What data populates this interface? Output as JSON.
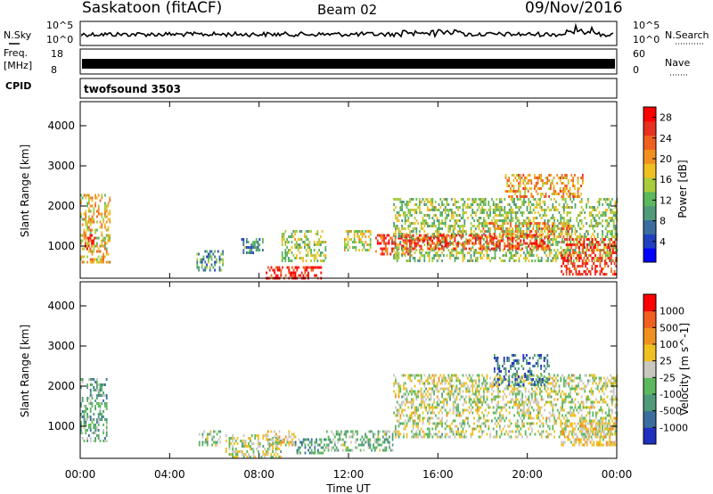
{
  "header": {
    "station": "Saskatoon (fitACF)",
    "beam": "Beam 02",
    "date": "09/Nov/2016"
  },
  "strips": {
    "nsky_label": "N.Sky",
    "nsearch_label": "N.Search",
    "nsky_top": "10^5",
    "nsky_bottom": "10^0",
    "nsearch_top": "10^5",
    "nsearch_bottom": "10^0",
    "freq_label": "Freq.",
    "freq_unit": "[MHz]",
    "freq_top": "18",
    "freq_bottom": "8",
    "nave_label": "Nave",
    "nave_top": "60",
    "nave_bottom": "0",
    "cpid_label": "CPID",
    "cpid_value": "twofsound 3503"
  },
  "colors": {
    "background": "#ffffff",
    "power_scale": [
      "#0000ff",
      "#2040c0",
      "#3a6e9c",
      "#4f9a7a",
      "#5cb85c",
      "#a8cc3c",
      "#f0c020",
      "#f09020",
      "#f06020",
      "#e83020",
      "#ff0000"
    ],
    "velocity_scale": [
      "#2030c0",
      "#3a6e9c",
      "#4f9a7a",
      "#5cb85c",
      "#c8c8c0",
      "#f0c020",
      "#f09020",
      "#f06020",
      "#ff0000"
    ]
  },
  "chart_data": [
    {
      "type": "heatmap",
      "title": "",
      "xlabel": "",
      "ylabel": "Slant Range [km]",
      "xlim": [
        "00:00",
        "00:00"
      ],
      "ylim": [
        200,
        4600
      ],
      "xticks": [
        "00:00",
        "04:00",
        "08:00",
        "12:00",
        "16:00",
        "20:00",
        "00:00"
      ],
      "yticks": [
        1000,
        2000,
        3000,
        4000
      ],
      "colorbar_label": "Power [dB]",
      "colorbar_ticks": [
        4,
        8,
        12,
        16,
        20,
        24,
        28
      ],
      "colorbar_range": [
        0,
        30
      ],
      "regions": [
        {
          "t0": 0.0,
          "t1": 1.3,
          "r0": 600,
          "r1": 2300,
          "v": 18
        },
        {
          "t0": 0.2,
          "t1": 0.7,
          "r0": 900,
          "r1": 1300,
          "v": 26
        },
        {
          "t0": 5.2,
          "t1": 6.4,
          "r0": 400,
          "r1": 900,
          "v": 10
        },
        {
          "t0": 7.2,
          "t1": 8.2,
          "r0": 800,
          "r1": 1200,
          "v": 9
        },
        {
          "t0": 9.0,
          "t1": 11.0,
          "r0": 600,
          "r1": 1400,
          "v": 14
        },
        {
          "t0": 8.3,
          "t1": 10.8,
          "r0": 200,
          "r1": 500,
          "v": 28
        },
        {
          "t0": 11.8,
          "t1": 13.0,
          "r0": 900,
          "r1": 1400,
          "v": 16
        },
        {
          "t0": 13.2,
          "t1": 14.8,
          "r0": 800,
          "r1": 1300,
          "v": 25
        },
        {
          "t0": 14.0,
          "t1": 24.0,
          "r0": 600,
          "r1": 2200,
          "v": 14
        },
        {
          "t0": 14.5,
          "t1": 21.0,
          "r0": 900,
          "r1": 1300,
          "v": 25
        },
        {
          "t0": 18.0,
          "t1": 22.0,
          "r0": 1200,
          "r1": 1600,
          "v": 21
        },
        {
          "t0": 19.0,
          "t1": 22.5,
          "r0": 2200,
          "r1": 2800,
          "v": 20
        },
        {
          "t0": 21.5,
          "t1": 24.0,
          "r0": 300,
          "r1": 1200,
          "v": 26
        }
      ]
    },
    {
      "type": "heatmap",
      "title": "",
      "xlabel": "Time UT",
      "ylabel": "Slant Range [km]",
      "xlim": [
        "00:00",
        "00:00"
      ],
      "ylim": [
        200,
        4600
      ],
      "xticks": [
        "00:00",
        "04:00",
        "08:00",
        "12:00",
        "16:00",
        "20:00",
        "00:00"
      ],
      "yticks": [
        1000,
        2000,
        3000,
        4000
      ],
      "colorbar_label": "Velocity [m s^-1]",
      "colorbar_ticks": [
        1000,
        500,
        100,
        25,
        -25,
        -100,
        -500,
        -1000
      ],
      "colorbar_range": [
        -1000,
        1000
      ],
      "regions": [
        {
          "t0": 0.0,
          "t1": 1.2,
          "r0": 600,
          "r1": 2200,
          "v": -300
        },
        {
          "t0": 5.3,
          "t1": 6.3,
          "r0": 500,
          "r1": 900,
          "v": -150
        },
        {
          "t0": 6.5,
          "t1": 9.0,
          "r0": 200,
          "r1": 800,
          "v": 0
        },
        {
          "t0": 8.3,
          "t1": 9.6,
          "r0": 500,
          "r1": 900,
          "v": 150
        },
        {
          "t0": 9.6,
          "t1": 11.0,
          "r0": 300,
          "r1": 700,
          "v": -400
        },
        {
          "t0": 11.0,
          "t1": 14.0,
          "r0": 400,
          "r1": 900,
          "v": -200
        },
        {
          "t0": 14.0,
          "t1": 24.0,
          "r0": 700,
          "r1": 2300,
          "v": 0
        },
        {
          "t0": 18.5,
          "t1": 21.0,
          "r0": 2000,
          "r1": 2800,
          "v": -600
        },
        {
          "t0": 21.5,
          "t1": 24.0,
          "r0": 500,
          "r1": 1100,
          "v": 200
        }
      ]
    }
  ]
}
